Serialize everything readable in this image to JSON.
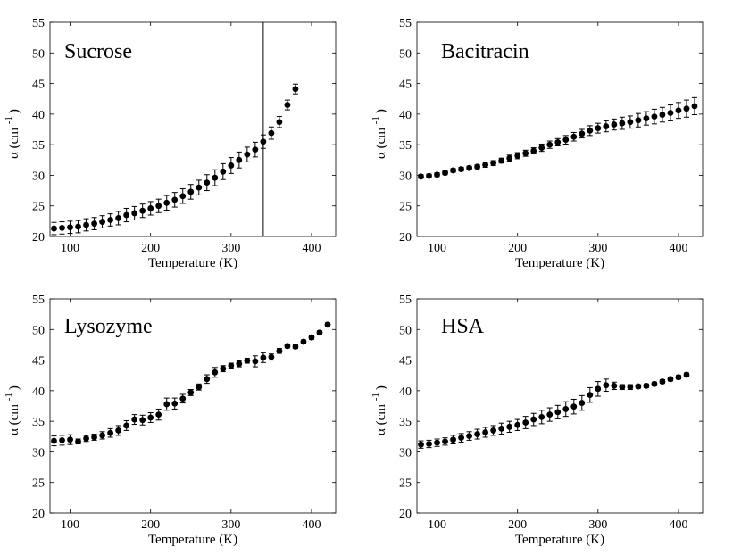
{
  "chart_data": [
    {
      "type": "scatter",
      "title": "Sucrose",
      "xlabel": "Temperature (K)",
      "ylabel": "α (cm -1 )",
      "ylabel_base": "α (cm",
      "ylabel_sup": "-1",
      "ylabel_close": ")",
      "xlim": [
        75,
        430
      ],
      "ylim": [
        20,
        55
      ],
      "xticks": [
        100,
        200,
        300,
        400
      ],
      "yticks": [
        20,
        25,
        30,
        35,
        40,
        45,
        50,
        55
      ],
      "vertical_line_x": 340,
      "x": [
        80,
        90,
        100,
        110,
        120,
        130,
        140,
        150,
        160,
        170,
        180,
        190,
        200,
        210,
        220,
        230,
        240,
        250,
        260,
        270,
        280,
        290,
        300,
        310,
        320,
        330,
        340,
        350,
        360,
        370,
        380
      ],
      "y": [
        21.3,
        21.4,
        21.5,
        21.6,
        21.9,
        22.1,
        22.4,
        22.7,
        23.0,
        23.5,
        23.8,
        24.2,
        24.6,
        25.0,
        25.5,
        26.0,
        26.6,
        27.3,
        28.0,
        28.8,
        29.6,
        30.6,
        31.6,
        32.5,
        33.4,
        34.2,
        35.5,
        36.9,
        38.7,
        41.5,
        44.1
      ],
      "err": [
        1.0,
        1.0,
        1.0,
        1.0,
        1.0,
        1.0,
        1.0,
        1.0,
        1.1,
        1.1,
        1.1,
        1.1,
        1.1,
        1.1,
        1.2,
        1.2,
        1.2,
        1.2,
        1.2,
        1.3,
        1.3,
        1.3,
        1.3,
        1.3,
        1.2,
        1.2,
        1.1,
        1.0,
        0.9,
        0.8,
        0.8
      ]
    },
    {
      "type": "scatter",
      "title": "Bacitracin",
      "xlabel": "Temperature (K)",
      "ylabel": "α (cm -1 )",
      "ylabel_base": "α (cm",
      "ylabel_sup": "-1",
      "ylabel_close": ")",
      "xlim": [
        75,
        430
      ],
      "ylim": [
        20,
        55
      ],
      "xticks": [
        100,
        200,
        300,
        400
      ],
      "yticks": [
        20,
        25,
        30,
        35,
        40,
        45,
        50,
        55
      ],
      "x": [
        80,
        90,
        100,
        110,
        120,
        130,
        140,
        150,
        160,
        170,
        180,
        190,
        200,
        210,
        220,
        230,
        240,
        250,
        260,
        270,
        280,
        290,
        300,
        310,
        320,
        330,
        340,
        350,
        360,
        370,
        380,
        390,
        400,
        410,
        420
      ],
      "y": [
        29.8,
        29.9,
        30.1,
        30.4,
        30.8,
        31.0,
        31.2,
        31.4,
        31.7,
        32.0,
        32.4,
        32.8,
        33.2,
        33.6,
        34.0,
        34.5,
        35.0,
        35.4,
        35.8,
        36.3,
        36.8,
        37.3,
        37.7,
        38.0,
        38.3,
        38.5,
        38.7,
        39.0,
        39.3,
        39.6,
        39.9,
        40.2,
        40.6,
        40.9,
        41.3
      ],
      "err": [
        0.3,
        0.3,
        0.3,
        0.3,
        0.3,
        0.3,
        0.3,
        0.3,
        0.4,
        0.4,
        0.4,
        0.5,
        0.5,
        0.5,
        0.5,
        0.6,
        0.6,
        0.6,
        0.7,
        0.7,
        0.7,
        0.8,
        0.8,
        0.9,
        0.9,
        1.0,
        1.0,
        1.1,
        1.1,
        1.2,
        1.2,
        1.3,
        1.3,
        1.4,
        1.4
      ]
    },
    {
      "type": "scatter",
      "title": "Lysozyme",
      "xlabel": "Temperature (K)",
      "ylabel": "α (cm -1 )",
      "ylabel_base": "α (cm",
      "ylabel_sup": "-1",
      "ylabel_close": ")",
      "xlim": [
        75,
        430
      ],
      "ylim": [
        20,
        55
      ],
      "xticks": [
        100,
        200,
        300,
        400
      ],
      "yticks": [
        20,
        25,
        30,
        35,
        40,
        45,
        50,
        55
      ],
      "x": [
        80,
        90,
        100,
        110,
        120,
        130,
        140,
        150,
        160,
        170,
        180,
        190,
        200,
        210,
        220,
        230,
        240,
        250,
        260,
        270,
        280,
        290,
        300,
        310,
        320,
        330,
        340,
        350,
        360,
        370,
        380,
        390,
        400,
        410,
        420
      ],
      "y": [
        31.8,
        31.9,
        32.0,
        31.7,
        32.2,
        32.4,
        32.7,
        33.1,
        33.5,
        34.3,
        35.3,
        35.2,
        35.6,
        36.1,
        37.8,
        37.9,
        38.7,
        39.7,
        40.6,
        41.9,
        43.0,
        43.6,
        44.1,
        44.4,
        44.9,
        44.8,
        45.4,
        45.5,
        46.5,
        47.3,
        47.2,
        48.0,
        48.7,
        49.5,
        50.8
      ],
      "err": [
        0.8,
        0.8,
        0.8,
        0.4,
        0.5,
        0.5,
        0.6,
        0.7,
        0.8,
        0.8,
        0.8,
        0.8,
        0.8,
        0.9,
        1.0,
        0.9,
        0.7,
        0.5,
        0.5,
        0.7,
        0.8,
        0.5,
        0.4,
        0.5,
        0.4,
        0.9,
        0.8,
        0.5,
        0.4,
        0.3,
        0.3,
        0.3,
        0.3,
        0.3,
        0.3
      ]
    },
    {
      "type": "scatter",
      "title": "HSA",
      "xlabel": "Temperature (K)",
      "ylabel": "α (cm -1 )",
      "ylabel_base": "α (cm",
      "ylabel_sup": "-1",
      "ylabel_close": ")",
      "xlim": [
        75,
        430
      ],
      "ylim": [
        20,
        55
      ],
      "xticks": [
        100,
        200,
        300,
        400
      ],
      "yticks": [
        20,
        25,
        30,
        35,
        40,
        45,
        50,
        55
      ],
      "x": [
        80,
        90,
        100,
        110,
        120,
        130,
        140,
        150,
        160,
        170,
        180,
        190,
        200,
        210,
        220,
        230,
        240,
        250,
        260,
        270,
        280,
        290,
        300,
        310,
        320,
        330,
        340,
        350,
        360,
        370,
        380,
        390,
        400,
        410
      ],
      "y": [
        31.2,
        31.3,
        31.5,
        31.7,
        32.0,
        32.3,
        32.6,
        32.9,
        33.2,
        33.5,
        33.8,
        34.1,
        34.4,
        34.8,
        35.3,
        35.7,
        36.1,
        36.5,
        37.0,
        37.4,
        38.0,
        39.3,
        40.3,
        40.9,
        40.8,
        40.6,
        40.6,
        40.7,
        40.8,
        41.1,
        41.5,
        41.9,
        42.2,
        42.6
      ],
      "err": [
        0.6,
        0.6,
        0.6,
        0.6,
        0.7,
        0.7,
        0.7,
        0.8,
        0.8,
        0.8,
        0.9,
        0.9,
        0.9,
        1.0,
        1.0,
        1.1,
        1.1,
        1.1,
        1.2,
        1.2,
        1.2,
        1.2,
        1.2,
        1.0,
        0.6,
        0.4,
        0.4,
        0.3,
        0.3,
        0.3,
        0.3,
        0.3,
        0.3,
        0.3
      ]
    }
  ]
}
